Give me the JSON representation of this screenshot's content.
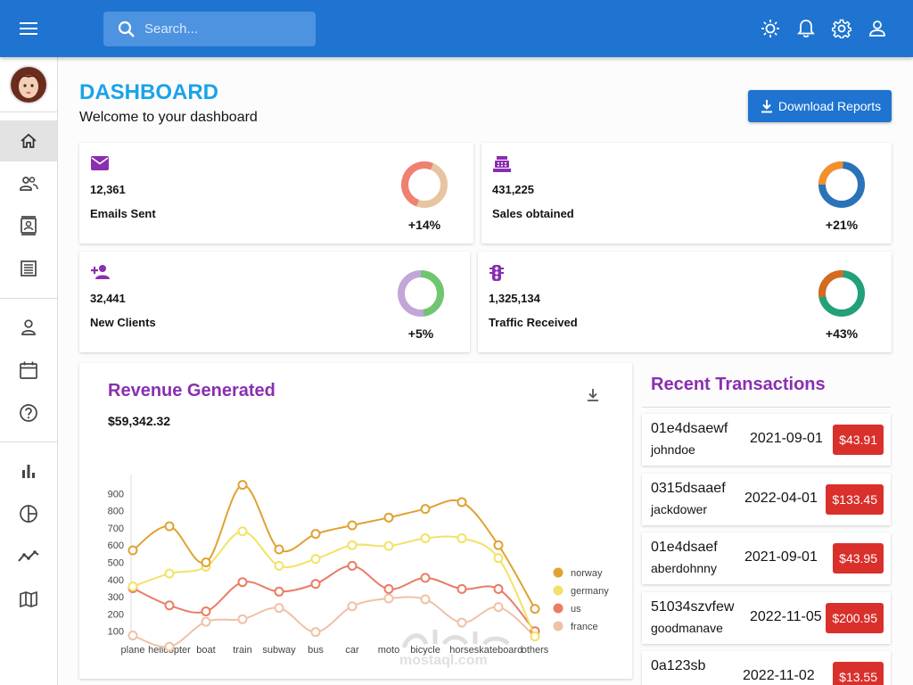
{
  "topbar": {
    "search_placeholder": "Search...",
    "icons": [
      "menu-icon",
      "search-icon",
      "sun-icon",
      "bell-icon",
      "gear-icon",
      "user-icon"
    ],
    "background": "#1e74d0"
  },
  "sidebar": {
    "items": [
      {
        "icon": "home-icon",
        "active": true
      },
      {
        "icon": "people-icon"
      },
      {
        "icon": "contacts-icon"
      },
      {
        "icon": "receipt-icon"
      },
      {
        "icon": "person-icon"
      },
      {
        "icon": "calendar-icon"
      },
      {
        "icon": "help-icon"
      },
      {
        "icon": "bar-chart-icon"
      },
      {
        "icon": "pie-chart-icon"
      },
      {
        "icon": "line-chart-icon"
      },
      {
        "icon": "map-icon"
      }
    ]
  },
  "header": {
    "title": "DASHBOARD",
    "subtitle": "Welcome to your dashboard",
    "download_label": "Download Reports"
  },
  "stats": [
    {
      "icon": "email-icon",
      "value": "12,361",
      "label": "Emails Sent",
      "percent": "+14%",
      "ring_colors": [
        "#f08070",
        "#e8c4a0"
      ]
    },
    {
      "icon": "point-of-sale-icon",
      "value": "431,225",
      "label": "Sales obtained",
      "percent": "+21%",
      "ring_colors": [
        "#f3902a",
        "#2a73b8"
      ]
    },
    {
      "icon": "person-add-icon",
      "value": "32,441",
      "label": "New Clients",
      "percent": "+5%",
      "ring_colors": [
        "#6fc66f",
        "#c2a6d8"
      ]
    },
    {
      "icon": "traffic-icon",
      "value": "1,325,134",
      "label": "Traffic Received",
      "percent": "+43%",
      "ring_colors": [
        "#d86a20",
        "#23a07a"
      ]
    }
  ],
  "revenue": {
    "title": "Revenue Generated",
    "value": "$59,342.32"
  },
  "chart_data": {
    "type": "line",
    "categories": [
      "plane",
      "helicopter",
      "boat",
      "train",
      "subway",
      "bus",
      "car",
      "moto",
      "bicycle",
      "horse",
      "skateboard",
      "others"
    ],
    "series": [
      {
        "name": "norway",
        "color": "#e0a232",
        "values": [
          570,
          710,
          500,
          950,
          575,
          665,
          715,
          760,
          810,
          850,
          600,
          230
        ]
      },
      {
        "name": "germany",
        "color": "#f2e266",
        "values": [
          360,
          435,
          475,
          680,
          480,
          520,
          600,
          595,
          640,
          640,
          525,
          70
        ]
      },
      {
        "name": "us",
        "color": "#ea7c64",
        "values": [
          350,
          250,
          215,
          385,
          330,
          375,
          480,
          345,
          410,
          345,
          345,
          100
        ]
      },
      {
        "name": "france",
        "color": "#efc1a6",
        "values": [
          75,
          10,
          155,
          170,
          235,
          95,
          245,
          290,
          285,
          150,
          240,
          70
        ]
      }
    ],
    "yticks": [
      100,
      200,
      300,
      400,
      500,
      600,
      700,
      800,
      900
    ],
    "ylim": [
      0,
      1000
    ],
    "legend": "right",
    "grid": false
  },
  "transactions": {
    "title": "Recent Transactions",
    "rows": [
      {
        "id": "01e4dsaewf",
        "user": "johndoe",
        "date": "2021-09-01",
        "amount": "$43.91"
      },
      {
        "id": "0315dsaaef",
        "user": "jackdower",
        "date": "2022-04-01",
        "amount": "$133.45"
      },
      {
        "id": "01e4dsaef",
        "user": "aberdohnny",
        "date": "2021-09-01",
        "amount": "$43.95"
      },
      {
        "id": "51034szvfew",
        "user": "goodmanave",
        "date": "2022-11-05",
        "amount": "$200.95"
      },
      {
        "id": "0a123sb",
        "user": "",
        "date": "2022-11-02",
        "amount": "$13.55"
      }
    ]
  },
  "watermark": {
    "text": "mostaql.com",
    "logo": "watermark-logo"
  }
}
